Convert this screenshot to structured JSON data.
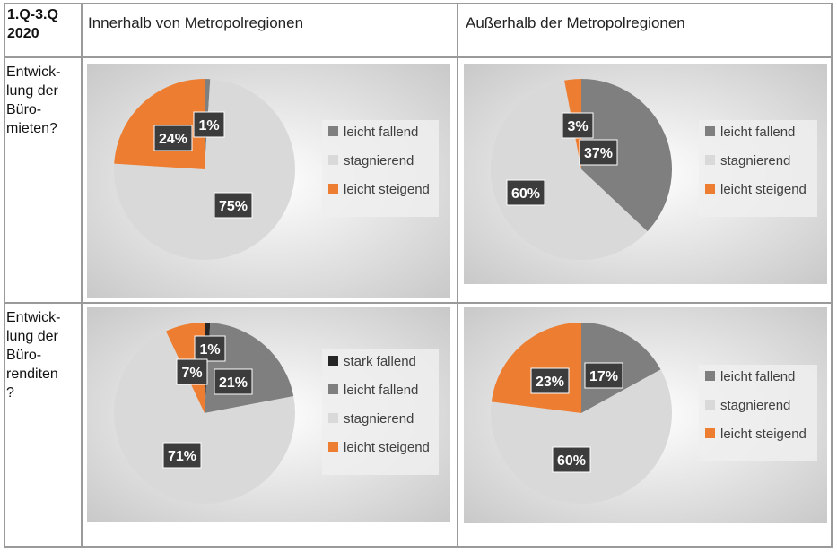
{
  "table": {
    "corner": "1.Q-3.Q\n2020",
    "col_headers": [
      "Innerhalb von Metropolregionen",
      "Außerhalb der Metropolregionen"
    ],
    "row_labels": [
      "Entwick-\nlung der\nBüro-\nmieten?",
      "Entwick-\nlung der\nBüro-\nrenditen\n?"
    ]
  },
  "colors": {
    "stark_fallend": "#262626",
    "leicht_fallend": "#7f7f7f",
    "stagnierend": "#d9d9d9",
    "leicht_steigend": "#ed7d31",
    "grid_line": "#9a9a9a"
  },
  "chart_data": [
    {
      "type": "pie",
      "categories": [
        "leicht fallend",
        "stagnierend",
        "leicht steigend"
      ],
      "values": [
        1,
        75,
        24
      ],
      "labels": [
        "1%",
        "75%",
        "24%"
      ],
      "legend": "right"
    },
    {
      "type": "pie",
      "categories": [
        "leicht fallend",
        "stagnierend",
        "leicht steigend"
      ],
      "values": [
        37,
        60,
        3
      ],
      "labels": [
        "37%",
        "60%",
        "3%"
      ],
      "legend": "right"
    },
    {
      "type": "pie",
      "categories": [
        "stark fallend",
        "leicht fallend",
        "stagnierend",
        "leicht steigend"
      ],
      "values": [
        1,
        21,
        71,
        7
      ],
      "labels": [
        "1%",
        "21%",
        "71%",
        "7%"
      ],
      "legend": "right"
    },
    {
      "type": "pie",
      "categories": [
        "leicht fallend",
        "stagnierend",
        "leicht steigend"
      ],
      "values": [
        17,
        60,
        23
      ],
      "labels": [
        "17%",
        "60%",
        "23%"
      ],
      "legend": "right"
    }
  ]
}
